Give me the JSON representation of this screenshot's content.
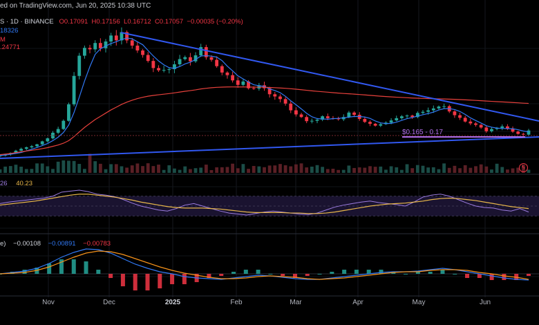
{
  "header": {
    "published": "ed on TradingView.com, Jun 20, 2025 10:38 UTC"
  },
  "legend": {
    "symbol": "S · 1D · BINANCE",
    "open": "O0.17091",
    "high": "H0.17156",
    "low": "L0.16712",
    "close": "C0.17057",
    "change": "−0.00035 (−0.20%)",
    "ind1": "18326",
    "ind2": "M",
    "ind3": ".24771"
  },
  "rsi_legend": {
    "rsi": "26",
    "ma": "40.23"
  },
  "macd_legend": {
    "label": "e)",
    "hist": "−0.00108",
    "macd": "−0.00891",
    "signal": "−0.00783"
  },
  "zone_label": "$0.165 - 0.17",
  "colors": {
    "up": "#26a69a",
    "down": "#f23645",
    "ma_fast": "#3179f5",
    "ma_slow": "#e8413c",
    "trendline": "#3158f0",
    "rsi": "#9c7ce0",
    "rsi_ma": "#e9b84a",
    "zone": "#b16ee9"
  },
  "chart_data": {
    "type": "candlestick",
    "x_labels": [
      "Nov",
      "Dec",
      "2025",
      "Feb",
      "Mar",
      "Apr",
      "May",
      "Jun"
    ],
    "price_path": [
      0.108,
      0.111,
      0.115,
      0.121,
      0.126,
      0.13,
      0.133,
      0.138,
      0.146,
      0.154,
      0.169,
      0.179,
      0.201,
      0.245,
      0.321,
      0.375,
      0.396,
      0.392,
      0.409,
      0.395,
      0.413,
      0.429,
      0.416,
      0.438,
      0.416,
      0.402,
      0.389,
      0.377,
      0.361,
      0.342,
      0.336,
      0.337,
      0.339,
      0.352,
      0.366,
      0.371,
      0.36,
      0.376,
      0.398,
      0.371,
      0.364,
      0.347,
      0.33,
      0.323,
      0.309,
      0.297,
      0.306,
      0.288,
      0.287,
      0.296,
      0.288,
      0.272,
      0.266,
      0.259,
      0.247,
      0.229,
      0.218,
      0.211,
      0.2,
      0.201,
      0.204,
      0.213,
      0.208,
      0.207,
      0.205,
      0.211,
      0.223,
      0.217,
      0.206,
      0.198,
      0.193,
      0.188,
      0.192,
      0.196,
      0.202,
      0.208,
      0.213,
      0.215,
      0.211,
      0.222,
      0.225,
      0.229,
      0.234,
      0.239,
      0.24,
      0.226,
      0.216,
      0.209,
      0.199,
      0.194,
      0.19,
      0.183,
      0.173,
      0.179,
      0.182,
      0.186,
      0.18,
      0.172,
      0.166,
      0.164,
      0.175
    ],
    "rsi_path": [
      55,
      58,
      60,
      62,
      64,
      66,
      70,
      78,
      80,
      82,
      79,
      74,
      72,
      69,
      63,
      56,
      50,
      46,
      42,
      40,
      45,
      52,
      55,
      50,
      45,
      40,
      36,
      34,
      32,
      35,
      38,
      40,
      38,
      36,
      34,
      33,
      36,
      42,
      48,
      52,
      55,
      58,
      60,
      57,
      55,
      53,
      50,
      58,
      68,
      72,
      74,
      70,
      63,
      56,
      50,
      47,
      46,
      42,
      40,
      45,
      38
    ],
    "rsi_ma_path": [
      52,
      54,
      56,
      58,
      60,
      63,
      66,
      69,
      72,
      74,
      74,
      72,
      70,
      68,
      65,
      62,
      58,
      55,
      52,
      49,
      47,
      46,
      46,
      46,
      45,
      44,
      42,
      40,
      38,
      37,
      37,
      37,
      37,
      36,
      36,
      35,
      35,
      36,
      38,
      41,
      44,
      47,
      50,
      52,
      54,
      55,
      56,
      58,
      60,
      63,
      65,
      66,
      65,
      63,
      61,
      58,
      55,
      52,
      49,
      47,
      45
    ],
    "macd_path": [
      0.0,
      0.002,
      0.004,
      0.008,
      0.015,
      0.024,
      0.031,
      0.036,
      0.035,
      0.03,
      0.022,
      0.014,
      0.008,
      0.003,
      0.0,
      -0.004,
      -0.006,
      -0.007,
      -0.008,
      -0.006,
      -0.004,
      -0.002,
      -0.003,
      -0.005,
      -0.007,
      -0.008,
      -0.008,
      -0.006,
      -0.004,
      -0.002,
      0.0,
      0.002,
      0.003,
      0.003,
      0.004,
      0.006,
      0.008,
      0.006,
      0.003,
      0.0,
      -0.003,
      -0.006,
      -0.008,
      -0.009
    ],
    "signal_path": [
      0.0,
      0.001,
      0.002,
      0.005,
      0.01,
      0.017,
      0.024,
      0.03,
      0.033,
      0.032,
      0.028,
      0.022,
      0.016,
      0.01,
      0.005,
      0.001,
      -0.002,
      -0.005,
      -0.007,
      -0.007,
      -0.006,
      -0.004,
      -0.003,
      -0.004,
      -0.005,
      -0.007,
      -0.008,
      -0.007,
      -0.006,
      -0.004,
      -0.002,
      0.0,
      0.002,
      0.003,
      0.003,
      0.005,
      0.006,
      0.006,
      0.005,
      0.002,
      0.0,
      -0.003,
      -0.005,
      -0.008
    ],
    "horizontal_zone": [
      0.165,
      0.17
    ]
  }
}
